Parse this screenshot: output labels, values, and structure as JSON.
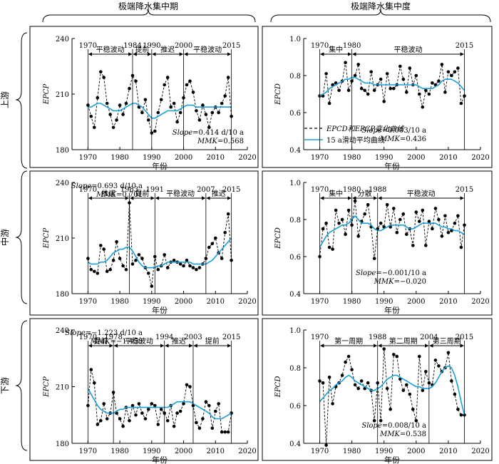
{
  "headers": {
    "col1": "极端降水集中期",
    "col2": "极端降水集中度",
    "rows": [
      "上游",
      "中游",
      "下游"
    ]
  },
  "legend": {
    "dashed": "EPCD和EPCP变化曲线",
    "smooth": "15 a滑动平均曲线"
  },
  "colors": {
    "observed": "#000000",
    "moving_avg": "#1a9fd6"
  },
  "chart_data": [
    {
      "id": "p11",
      "type": "line",
      "xlabel": "年份",
      "ylabel": "EPCP",
      "xlim": [
        1965,
        2020
      ],
      "ylim": [
        180,
        240
      ],
      "xticks": [
        1970,
        1980,
        1990,
        2000,
        2010,
        2020
      ],
      "yticks": [
        180,
        210,
        240
      ],
      "x": [
        1970,
        1971,
        1972,
        1973,
        1974,
        1975,
        1976,
        1977,
        1978,
        1979,
        1980,
        1981,
        1982,
        1983,
        1984,
        1985,
        1986,
        1987,
        1988,
        1989,
        1990,
        1991,
        1992,
        1993,
        1994,
        1995,
        1996,
        1997,
        1998,
        1999,
        2000,
        2001,
        2002,
        2003,
        2004,
        2005,
        2006,
        2007,
        2008,
        2009,
        2010,
        2011,
        2012,
        2013,
        2014,
        2015
      ],
      "series": [
        {
          "values": [
            204,
            198,
            192,
            208,
            222,
            219,
            205,
            199,
            192,
            196,
            204,
            199,
            205,
            213,
            220,
            217,
            203,
            200,
            207,
            196,
            189,
            190,
            200,
            207,
            215,
            219,
            203,
            205,
            195,
            200,
            208,
            215,
            217,
            211,
            201,
            196,
            204,
            199,
            192,
            200,
            203,
            200,
            205,
            209,
            219,
            198
          ]
        },
        {
          "values": [
            203,
            203,
            204,
            205,
            205,
            204,
            203,
            202,
            201,
            201,
            201,
            202,
            203,
            204,
            205,
            205,
            204,
            203,
            201,
            199,
            197,
            197,
            198,
            199,
            200,
            201,
            201,
            201,
            201,
            202,
            203,
            204,
            204,
            204,
            203,
            203,
            203,
            203,
            203,
            203,
            203,
            203,
            203,
            203,
            203,
            203
          ]
        }
      ],
      "periods": [
        {
          "start": "1970",
          "end": "1984",
          "label": "平稳波动"
        },
        {
          "start": "1984",
          "end": "1990",
          "label": "提前"
        },
        {
          "start": "1990",
          "end": "2000",
          "label": "推迟"
        },
        {
          "start": "2000",
          "end": "2015",
          "label": "平稳波动"
        }
      ],
      "stats": {
        "slope": "Slope=0.414 d/10 a",
        "mmk": "MMK=0.568"
      }
    },
    {
      "id": "p12",
      "type": "line",
      "xlabel": "年份",
      "ylabel": "EPCD",
      "xlim": [
        1965,
        2020
      ],
      "ylim": [
        0.4,
        1.0
      ],
      "xticks": [
        1970,
        1980,
        1990,
        2000,
        2010,
        2020
      ],
      "yticks": [
        "0.4",
        "0.6",
        "0.8",
        "1.0"
      ],
      "x": [
        1970,
        1971,
        1972,
        1973,
        1974,
        1975,
        1976,
        1977,
        1978,
        1979,
        1980,
        1981,
        1982,
        1983,
        1984,
        1985,
        1986,
        1987,
        1988,
        1989,
        1990,
        1991,
        1992,
        1993,
        1994,
        1995,
        1996,
        1997,
        1998,
        1999,
        2000,
        2001,
        2002,
        2003,
        2004,
        2005,
        2006,
        2007,
        2008,
        2009,
        2010,
        2011,
        2012,
        2013,
        2014,
        2015
      ],
      "series": [
        {
          "values": [
            0.69,
            0.69,
            0.81,
            0.65,
            0.75,
            0.76,
            0.72,
            0.77,
            0.87,
            0.72,
            0.77,
            0.8,
            0.86,
            0.73,
            0.72,
            0.7,
            0.82,
            0.72,
            0.75,
            0.78,
            0.66,
            0.81,
            0.73,
            0.73,
            0.75,
            0.85,
            0.78,
            0.71,
            0.84,
            0.75,
            0.8,
            0.7,
            0.63,
            0.72,
            0.7,
            0.76,
            0.75,
            0.77,
            0.86,
            0.71,
            0.82,
            0.8,
            0.82,
            0.84,
            0.65,
            0.69
          ]
        },
        {
          "values": [
            0.69,
            0.7,
            0.71,
            0.73,
            0.74,
            0.75,
            0.76,
            0.77,
            0.78,
            0.78,
            0.79,
            0.79,
            0.78,
            0.77,
            0.76,
            0.76,
            0.76,
            0.75,
            0.75,
            0.75,
            0.75,
            0.75,
            0.75,
            0.75,
            0.75,
            0.75,
            0.75,
            0.75,
            0.75,
            0.75,
            0.75,
            0.74,
            0.73,
            0.73,
            0.73,
            0.73,
            0.74,
            0.75,
            0.77,
            0.78,
            0.78,
            0.78,
            0.77,
            0.76,
            0.74,
            0.72
          ]
        }
      ],
      "periods": [
        {
          "start": "1970",
          "end": "1980",
          "label": "集中"
        },
        {
          "start": "1980",
          "end": "2015",
          "label": "平稳波动"
        }
      ],
      "stats": {
        "slope": "Slope=0.003/10 a",
        "mmk": "MMK=0.436"
      }
    },
    {
      "id": "p21",
      "type": "line",
      "xlabel": "年份",
      "ylabel": "EPCP",
      "xlim": [
        1965,
        2020
      ],
      "ylim": [
        180,
        240
      ],
      "xticks": [
        1970,
        1980,
        1990,
        2000,
        2010,
        2020
      ],
      "yticks": [
        180,
        210,
        240
      ],
      "x": [
        1970,
        1971,
        1972,
        1973,
        1974,
        1975,
        1976,
        1977,
        1978,
        1979,
        1980,
        1981,
        1982,
        1983,
        1984,
        1985,
        1986,
        1987,
        1988,
        1989,
        1990,
        1991,
        1992,
        1993,
        1994,
        1995,
        1996,
        1997,
        1998,
        1999,
        2000,
        2001,
        2002,
        2003,
        2004,
        2005,
        2006,
        2007,
        2008,
        2009,
        2010,
        2011,
        2012,
        2013,
        2014,
        2015
      ],
      "series": [
        {
          "values": [
            199,
            193,
            192,
            191,
            206,
            204,
            192,
            193,
            198,
            208,
            199,
            195,
            193,
            229,
            196,
            198,
            201,
            199,
            194,
            191,
            184,
            200,
            193,
            195,
            201,
            194,
            197,
            198,
            197,
            196,
            195,
            198,
            195,
            194,
            193,
            194,
            196,
            199,
            205,
            207,
            210,
            202,
            199,
            213,
            223,
            198
          ]
        },
        {
          "values": [
            197,
            196,
            196,
            196,
            197,
            197,
            198,
            200,
            202,
            203,
            204,
            204,
            205,
            205,
            203,
            200,
            197,
            195,
            194,
            194,
            194,
            194,
            195,
            195,
            196,
            197,
            197,
            197,
            197,
            197,
            197,
            197,
            197,
            196,
            196,
            196,
            196,
            196,
            197,
            198,
            200,
            202,
            204,
            206,
            208,
            210
          ]
        }
      ],
      "periods": [
        {
          "start": "1970",
          "end": "1983",
          "label": "推迟"
        },
        {
          "start": "1983",
          "end": "1991",
          "label": "提前"
        },
        {
          "start": "1991",
          "end": "2007",
          "label": "平稳波动"
        },
        {
          "start": "2007",
          "end": "2015",
          "label": "推迟"
        }
      ],
      "stats": {
        "slope": "Slope=0.693 d/10 a",
        "mmk": "MMK=0.701"
      }
    },
    {
      "id": "p22",
      "type": "line",
      "xlabel": "年份",
      "ylabel": "EPCD",
      "xlim": [
        1965,
        2020
      ],
      "ylim": [
        0.4,
        1.0
      ],
      "xticks": [
        1970,
        1980,
        1990,
        2000,
        2010,
        2020
      ],
      "yticks": [
        "0.4",
        "0.6",
        "0.8",
        "1.0"
      ],
      "x": [
        1970,
        1971,
        1972,
        1973,
        1974,
        1975,
        1976,
        1977,
        1978,
        1979,
        1980,
        1981,
        1982,
        1983,
        1984,
        1985,
        1986,
        1987,
        1988,
        1989,
        1990,
        1991,
        1992,
        1993,
        1994,
        1995,
        1996,
        1997,
        1998,
        1999,
        2000,
        2001,
        2002,
        2003,
        2004,
        2005,
        2006,
        2007,
        2008,
        2009,
        2010,
        2011,
        2012,
        2013,
        2014,
        2015
      ],
      "series": [
        {
          "values": [
            0.6,
            0.75,
            0.78,
            0.65,
            0.64,
            0.85,
            0.78,
            0.8,
            0.72,
            0.85,
            0.77,
            0.9,
            0.71,
            0.79,
            0.83,
            0.88,
            0.76,
            0.59,
            0.75,
            0.78,
            0.76,
            0.88,
            0.76,
            0.86,
            0.73,
            0.8,
            0.83,
            0.72,
            0.75,
            0.66,
            0.84,
            0.79,
            0.85,
            0.66,
            0.79,
            0.75,
            0.86,
            0.8,
            0.71,
            0.82,
            0.73,
            0.74,
            0.78,
            0.82,
            0.65,
            0.77
          ]
        },
        {
          "values": [
            0.65,
            0.68,
            0.71,
            0.73,
            0.74,
            0.75,
            0.76,
            0.77,
            0.77,
            0.78,
            0.8,
            0.82,
            0.8,
            0.78,
            0.78,
            0.78,
            0.77,
            0.75,
            0.74,
            0.74,
            0.75,
            0.76,
            0.77,
            0.77,
            0.77,
            0.77,
            0.77,
            0.76,
            0.75,
            0.75,
            0.76,
            0.77,
            0.78,
            0.78,
            0.78,
            0.78,
            0.78,
            0.77,
            0.76,
            0.76,
            0.75,
            0.75,
            0.74,
            0.74,
            0.73,
            0.72
          ]
        }
      ],
      "periods": [
        {
          "start": "1970",
          "end": "1980",
          "label": "集中"
        },
        {
          "start": "1980",
          "end": "1988",
          "label": "分散"
        },
        {
          "start": "1988",
          "end": "2015",
          "label": "平稳波动"
        }
      ],
      "stats": {
        "slope": "Slope=−0.001/10 a",
        "mmk": "MMK=−0.020"
      }
    },
    {
      "id": "p31",
      "type": "line",
      "xlabel": "年份",
      "ylabel": "EPCP",
      "xlim": [
        1965,
        2020
      ],
      "ylim": [
        180,
        240
      ],
      "xticks": [
        1970,
        1980,
        1990,
        2000,
        2010,
        2020
      ],
      "yticks": [
        180,
        210,
        240
      ],
      "x": [
        1970,
        1971,
        1972,
        1973,
        1974,
        1975,
        1976,
        1977,
        1978,
        1979,
        1980,
        1981,
        1982,
        1983,
        1984,
        1985,
        1986,
        1987,
        1988,
        1989,
        1990,
        1991,
        1992,
        1993,
        1994,
        1995,
        1996,
        1997,
        1998,
        1999,
        2000,
        2001,
        2002,
        2003,
        2004,
        2005,
        2006,
        2007,
        2008,
        2009,
        2010,
        2011,
        2012,
        2013,
        2014,
        2015
      ],
      "series": [
        {
          "values": [
            200,
            219,
            212,
            190,
            192,
            201,
            193,
            196,
            207,
            196,
            193,
            189,
            199,
            192,
            200,
            195,
            201,
            196,
            193,
            198,
            201,
            200,
            190,
            198,
            196,
            192,
            200,
            189,
            196,
            197,
            201,
            211,
            210,
            200,
            191,
            188,
            193,
            202,
            200,
            188,
            197,
            201,
            186,
            186,
            186,
            196
          ]
        },
        {
          "values": [
            209,
            206,
            203,
            200,
            198,
            197,
            196,
            196,
            196,
            197,
            198,
            198,
            199,
            199,
            199,
            199,
            199,
            199,
            199,
            199,
            199,
            199,
            199,
            199,
            199,
            199,
            200,
            201,
            202,
            202,
            202,
            202,
            202,
            201,
            200,
            199,
            198,
            197,
            196,
            194,
            193,
            193,
            193,
            194,
            195,
            196
          ]
        }
      ],
      "periods": [
        {
          "start": "1970",
          "end": "1978",
          "label": "提前"
        },
        {
          "start": "1978",
          "end": "1994",
          "label": "平稳波动"
        },
        {
          "start": "1994",
          "end": "2003",
          "label": "推迟"
        },
        {
          "start": "2003",
          "end": "2015",
          "label": "提前"
        }
      ],
      "stats": {
        "slope": "Slope=−1.223 d/10 a",
        "mmk": "MMK=−1.458"
      }
    },
    {
      "id": "p32",
      "type": "line",
      "xlabel": "年份",
      "ylabel": "EPCD",
      "xlim": [
        1965,
        2020
      ],
      "ylim": [
        0.4,
        1.0
      ],
      "xticks": [
        1970,
        1980,
        1990,
        2000,
        2010,
        2020
      ],
      "yticks": [
        "0.4",
        "0.6",
        "0.8",
        "1.0"
      ],
      "x": [
        1970,
        1971,
        1972,
        1973,
        1974,
        1975,
        1976,
        1977,
        1978,
        1979,
        1980,
        1981,
        1982,
        1983,
        1984,
        1985,
        1986,
        1987,
        1988,
        1989,
        1990,
        1991,
        1992,
        1993,
        1994,
        1995,
        1996,
        1997,
        1998,
        1999,
        2000,
        2001,
        2002,
        2003,
        2004,
        2005,
        2006,
        2007,
        2008,
        2009,
        2010,
        2011,
        2012,
        2013,
        2014,
        2015
      ],
      "series": [
        {
          "values": [
            0.73,
            0.72,
            0.39,
            0.75,
            0.61,
            0.7,
            0.72,
            0.76,
            0.83,
            0.86,
            0.79,
            0.71,
            0.69,
            0.73,
            0.69,
            0.72,
            0.68,
            0.52,
            0.72,
            0.52,
            0.9,
            0.69,
            0.58,
            0.87,
            0.86,
            0.74,
            0.68,
            0.71,
            0.66,
            0.58,
            0.52,
            0.86,
            0.68,
            0.78,
            0.72,
            0.71,
            0.84,
            0.81,
            0.78,
            0.8,
            0.88,
            0.73,
            0.66,
            0.58,
            0.55,
            0.55
          ]
        },
        {
          "values": [
            0.62,
            0.64,
            0.66,
            0.68,
            0.69,
            0.71,
            0.72,
            0.73,
            0.75,
            0.76,
            0.75,
            0.73,
            0.72,
            0.71,
            0.7,
            0.69,
            0.68,
            0.68,
            0.69,
            0.7,
            0.72,
            0.74,
            0.75,
            0.76,
            0.76,
            0.75,
            0.74,
            0.73,
            0.72,
            0.71,
            0.7,
            0.7,
            0.69,
            0.69,
            0.69,
            0.7,
            0.72,
            0.75,
            0.78,
            0.8,
            0.81,
            0.8,
            0.76,
            0.7,
            0.62,
            0.55
          ]
        }
      ],
      "periods": [
        {
          "start": "1970",
          "end": "1988",
          "label": "第一周期"
        },
        {
          "start": "1988",
          "end": "2004",
          "label": "第二周期"
        },
        {
          "start": "2004",
          "end": "2015",
          "label": "第三周期"
        }
      ],
      "stats": {
        "slope": "Slope=0.008/10 a",
        "mmk": "MMK=0.538"
      }
    }
  ]
}
